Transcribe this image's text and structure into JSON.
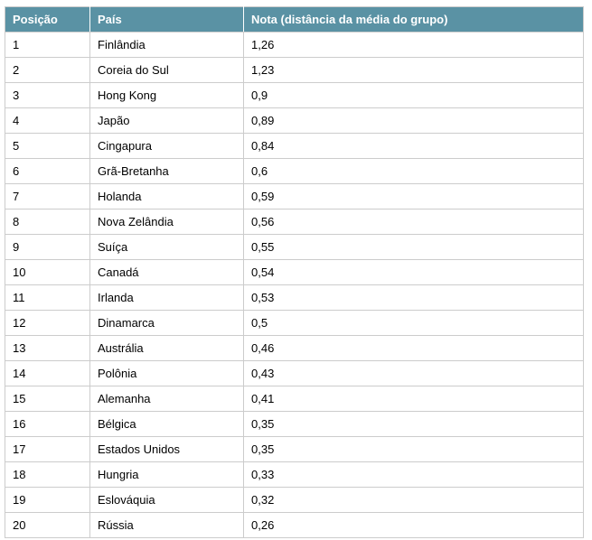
{
  "chart_data": {
    "type": "table",
    "columns": [
      "Posição",
      "País",
      "Nota (distância da média do grupo)"
    ],
    "rows": [
      [
        "1",
        "Finlândia",
        "1,26"
      ],
      [
        "2",
        "Coreia do Sul",
        "1,23"
      ],
      [
        "3",
        "Hong Kong",
        "0,9"
      ],
      [
        "4",
        "Japão",
        "0,89"
      ],
      [
        "5",
        "Cingapura",
        "0,84"
      ],
      [
        "6",
        "Grã-Bretanha",
        "0,6"
      ],
      [
        "7",
        "Holanda",
        "0,59"
      ],
      [
        "8",
        "Nova Zelândia",
        "0,56"
      ],
      [
        "9",
        "Suíça",
        "0,55"
      ],
      [
        "10",
        "Canadá",
        "0,54"
      ],
      [
        "11",
        "Irlanda",
        "0,53"
      ],
      [
        "12",
        "Dinamarca",
        "0,5"
      ],
      [
        "13",
        "Austrália",
        "0,46"
      ],
      [
        "14",
        "Polônia",
        "0,43"
      ],
      [
        "15",
        "Alemanha",
        "0,41"
      ],
      [
        "16",
        "Bélgica",
        "0,35"
      ],
      [
        "17",
        "Estados Unidos",
        "0,35"
      ],
      [
        "18",
        "Hungria",
        "0,33"
      ],
      [
        "19",
        "Eslováquia",
        "0,32"
      ],
      [
        "20",
        "Rússia",
        "0,26"
      ]
    ]
  },
  "colors": {
    "header_bg": "#5A92A4",
    "header_text": "#FFFFFF",
    "border": "#CCCCCC",
    "row_bg": "#FFFFFF",
    "body_text": "#000000"
  }
}
